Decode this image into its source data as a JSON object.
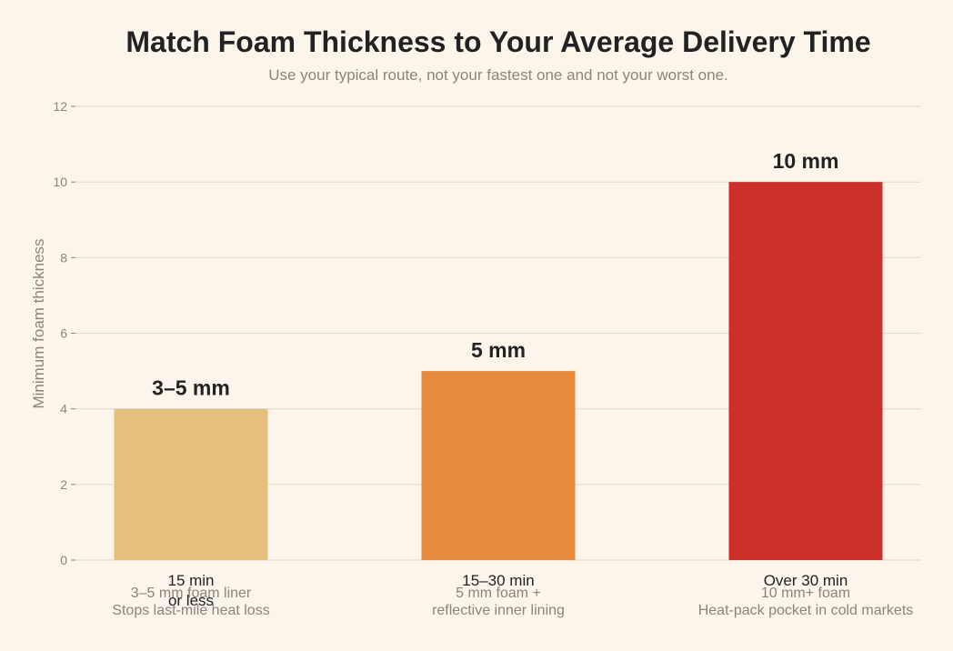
{
  "chart_data": {
    "type": "bar",
    "title": "Match Foam Thickness to Your Average Delivery Time",
    "subtitle": "Use your typical route, not your fastest one and not your worst one.",
    "xlabel": "",
    "ylabel": "Minimum foam thickness",
    "ylim": [
      0,
      12
    ],
    "yticks": [
      0,
      2,
      4,
      6,
      8,
      10,
      12
    ],
    "grid": true,
    "categories": [
      [
        "15 min",
        "or less"
      ],
      [
        "15–30 min"
      ],
      [
        "Over 30 min"
      ]
    ],
    "values": [
      4,
      5,
      10
    ],
    "value_labels": [
      "3–5 mm",
      "5 mm",
      "10 mm"
    ],
    "annotations": [
      [
        "3–5 mm foam liner",
        "Stops last-mile heat loss"
      ],
      [
        "5 mm foam +",
        "reflective inner lining"
      ],
      [
        "10 mm+ foam",
        "Heat-pack pocket in cold markets"
      ]
    ],
    "colors": [
      "#e6c07b",
      "#e68a3c",
      "#cc302a"
    ],
    "gridline_color": "#e4dccf"
  }
}
